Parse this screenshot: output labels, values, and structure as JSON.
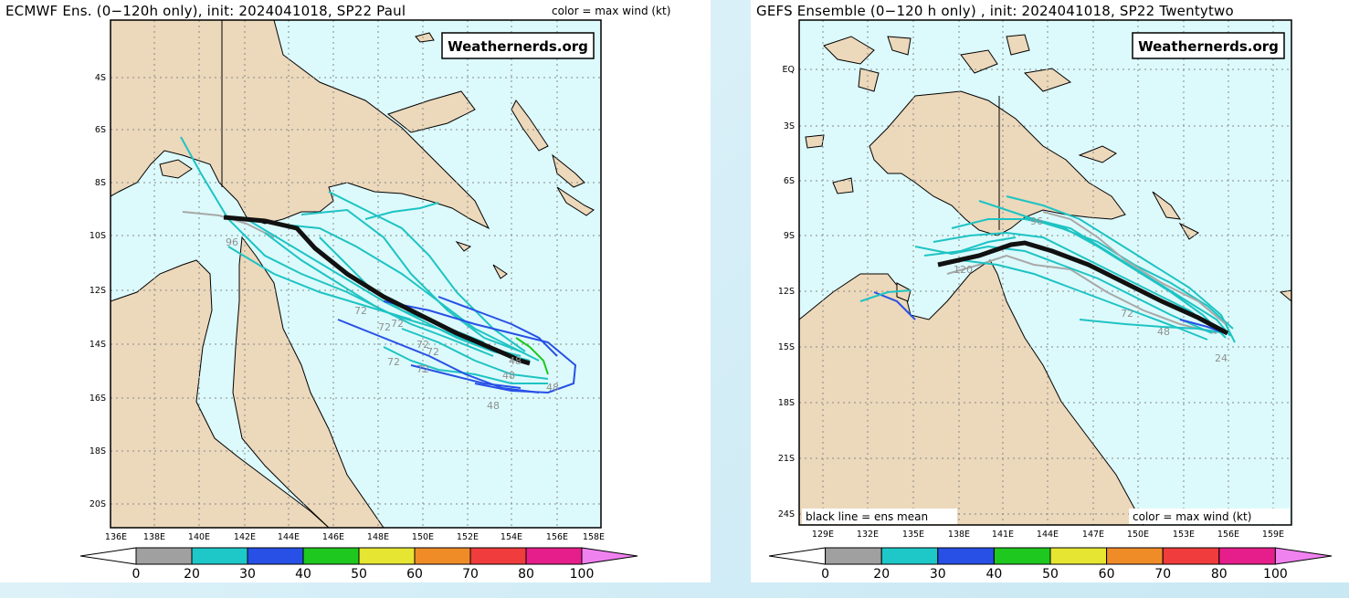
{
  "left": {
    "title": "ECMWF Ens. (0−120h only), init: 2024041018, SP22 Paul",
    "color_note": "color = max wind (kt)",
    "watermark": "Weathernerds.org",
    "lat_labels": [
      "4S",
      "6S",
      "8S",
      "10S",
      "12S",
      "14S",
      "16S",
      "18S",
      "20S"
    ],
    "lon_labels": [
      "136E",
      "138E",
      "140E",
      "142E",
      "144E",
      "146E",
      "148E",
      "150E",
      "152E",
      "154E",
      "156E",
      "158E"
    ],
    "track_labels": [
      "96",
      "72",
      "72",
      "72",
      "72",
      "72",
      "72",
      "72",
      "48",
      "48",
      "48",
      "48"
    ]
  },
  "right": {
    "title": "GEFS Ensemble (0−120 h only) , init: 2024041018, SP22 Twentytwo",
    "watermark": "Weathernerds.org",
    "lat_labels": [
      "EQ",
      "3S",
      "6S",
      "9S",
      "12S",
      "15S",
      "18S",
      "21S",
      "24S"
    ],
    "lon_labels": [
      "129E",
      "132E",
      "135E",
      "138E",
      "141E",
      "144E",
      "147E",
      "150E",
      "153E",
      "156E",
      "159E"
    ],
    "track_labels": [
      "120",
      "96",
      "72",
      "48",
      "24"
    ],
    "legend_left": "black line = ens mean",
    "legend_right": "color = max wind (kt)"
  },
  "colorbar": {
    "ticks": [
      "0",
      "20",
      "30",
      "40",
      "50",
      "60",
      "70",
      "80",
      "100"
    ],
    "colors": [
      "#ffffff",
      "#a0a0a0",
      "#1ec8c8",
      "#2850e6",
      "#1ec81e",
      "#e6e632",
      "#f08c28",
      "#f03c3c",
      "#e61e8c",
      "#f082f0"
    ]
  },
  "colors": {
    "ocean": "#dcfafc",
    "land": "#ecd8bb",
    "ens_mean": "#111111",
    "grey_member": "#a8a8a8",
    "cyan_member": "#1ec3c3",
    "blue_member": "#2850e6",
    "green_member": "#1ec81e"
  }
}
